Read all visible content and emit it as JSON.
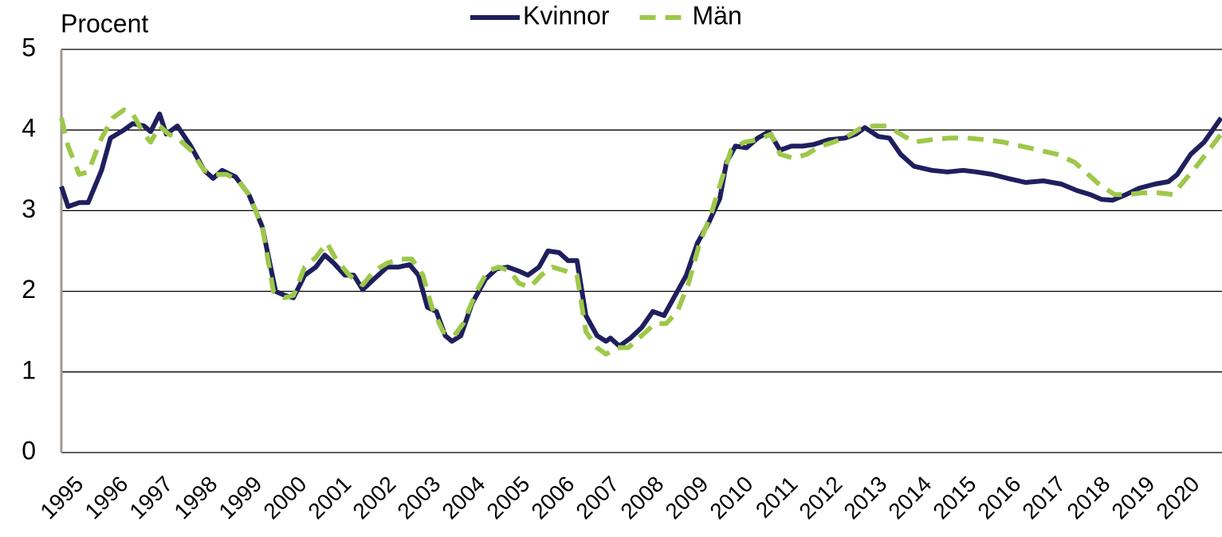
{
  "chart_data": {
    "type": "line",
    "ylabel": "Procent",
    "xlim": [
      1995,
      2021
    ],
    "xticks": [
      1995,
      1996,
      1997,
      1998,
      1999,
      2000,
      2001,
      2002,
      2003,
      2004,
      2005,
      2006,
      2007,
      2008,
      2009,
      2010,
      2011,
      2012,
      2013,
      2014,
      2015,
      2016,
      2017,
      2018,
      2019,
      2020
    ],
    "ylim": [
      0,
      5
    ],
    "yticks": [
      0,
      1,
      2,
      3,
      4,
      5
    ],
    "grid": true,
    "legend": "top",
    "series": [
      {
        "name": "Kvinnor",
        "color": "#1f1f5e",
        "dash": false,
        "x": [
          1995.0,
          1995.15,
          1995.4,
          1995.6,
          1995.9,
          1996.1,
          1996.4,
          1996.6,
          1996.85,
          1997.0,
          1997.2,
          1997.35,
          1997.6,
          1997.9,
          1998.2,
          1998.4,
          1998.6,
          1998.9,
          1999.2,
          1999.5,
          1999.8,
          2000.0,
          2000.2,
          2000.45,
          2000.7,
          2000.9,
          2001.1,
          2001.35,
          2001.55,
          2001.75,
          2002.0,
          2002.3,
          2002.55,
          2002.8,
          2003.0,
          2003.2,
          2003.4,
          2003.6,
          2003.75,
          2003.95,
          2004.2,
          2004.5,
          2004.75,
          2005.0,
          2005.25,
          2005.45,
          2005.7,
          2005.9,
          2006.15,
          2006.35,
          2006.55,
          2006.75,
          2007.0,
          2007.2,
          2007.3,
          2007.5,
          2007.75,
          2008.0,
          2008.25,
          2008.5,
          2008.75,
          2009.0,
          2009.25,
          2009.5,
          2009.75,
          2009.9,
          2010.1,
          2010.35,
          2010.6,
          2010.85,
          2011.1,
          2011.35,
          2011.6,
          2011.85,
          2012.2,
          2012.55,
          2012.8,
          2013.0,
          2013.3,
          2013.55,
          2013.8,
          2014.1,
          2014.5,
          2014.85,
          2015.2,
          2015.5,
          2015.85,
          2016.2,
          2016.6,
          2017.0,
          2017.4,
          2017.75,
          2018.05,
          2018.3,
          2018.55,
          2018.85,
          2019.15,
          2019.5,
          2019.8,
          2020.0,
          2020.3,
          2020.6,
          2020.98
        ],
        "values": [
          3.3,
          3.05,
          3.1,
          3.1,
          3.5,
          3.9,
          4.0,
          4.08,
          4.05,
          3.98,
          4.2,
          3.95,
          4.05,
          3.8,
          3.5,
          3.4,
          3.5,
          3.42,
          3.2,
          2.8,
          2.0,
          1.95,
          1.92,
          2.2,
          2.3,
          2.45,
          2.35,
          2.2,
          2.2,
          2.02,
          2.15,
          2.3,
          2.3,
          2.33,
          2.2,
          1.8,
          1.75,
          1.45,
          1.38,
          1.45,
          1.85,
          2.15,
          2.28,
          2.3,
          2.25,
          2.2,
          2.3,
          2.5,
          2.48,
          2.38,
          2.38,
          1.7,
          1.45,
          1.38,
          1.42,
          1.32,
          1.42,
          1.55,
          1.75,
          1.7,
          1.95,
          2.2,
          2.6,
          2.85,
          3.15,
          3.6,
          3.8,
          3.78,
          3.9,
          3.98,
          3.75,
          3.8,
          3.8,
          3.82,
          3.88,
          3.9,
          3.95,
          4.03,
          3.92,
          3.9,
          3.7,
          3.55,
          3.5,
          3.48,
          3.5,
          3.48,
          3.45,
          3.4,
          3.35,
          3.37,
          3.33,
          3.25,
          3.2,
          3.14,
          3.13,
          3.2,
          3.28,
          3.33,
          3.36,
          3.45,
          3.7,
          3.85,
          4.15
        ]
      },
      {
        "name": "Män",
        "color": "#9dc84a",
        "dash": true,
        "x": [
          1995.0,
          1995.15,
          1995.4,
          1995.6,
          1995.9,
          1996.15,
          1996.4,
          1996.6,
          1996.85,
          1997.0,
          1997.2,
          1997.4,
          1997.6,
          1997.9,
          1998.2,
          1998.45,
          1998.7,
          1998.95,
          1999.2,
          1999.5,
          1999.75,
          2000.0,
          2000.2,
          2000.45,
          2000.7,
          2000.95,
          2001.15,
          2001.45,
          2001.75,
          2002.0,
          2002.3,
          2002.6,
          2002.85,
          2003.1,
          2003.3,
          2003.55,
          2003.8,
          2004.0,
          2004.3,
          2004.55,
          2004.8,
          2005.05,
          2005.25,
          2005.5,
          2005.75,
          2006.0,
          2006.3,
          2006.55,
          2006.75,
          2007.0,
          2007.2,
          2007.45,
          2007.7,
          2008.0,
          2008.3,
          2008.55,
          2008.8,
          2009.05,
          2009.3,
          2009.55,
          2009.8,
          2010.0,
          2010.3,
          2010.6,
          2010.9,
          2011.1,
          2011.4,
          2011.7,
          2012.0,
          2012.3,
          2012.6,
          2012.9,
          2013.2,
          2013.5,
          2013.8,
          2014.1,
          2014.5,
          2014.9,
          2015.3,
          2015.7,
          2016.1,
          2016.5,
          2016.9,
          2017.3,
          2017.7,
          2018.0,
          2018.3,
          2018.6,
          2018.9,
          2019.2,
          2019.6,
          2019.9,
          2020.2,
          2020.5,
          2020.98
        ],
        "values": [
          4.15,
          3.8,
          3.45,
          3.48,
          3.9,
          4.15,
          4.25,
          4.2,
          3.95,
          3.85,
          4.05,
          3.95,
          3.9,
          3.75,
          3.5,
          3.45,
          3.45,
          3.38,
          3.2,
          2.8,
          2.0,
          1.92,
          1.95,
          2.3,
          2.42,
          2.6,
          2.4,
          2.2,
          2.08,
          2.25,
          2.35,
          2.4,
          2.4,
          2.2,
          1.8,
          1.5,
          1.45,
          1.6,
          2.0,
          2.25,
          2.3,
          2.25,
          2.1,
          2.05,
          2.2,
          2.3,
          2.25,
          2.2,
          1.5,
          1.3,
          1.22,
          1.3,
          1.3,
          1.45,
          1.6,
          1.6,
          1.75,
          2.1,
          2.6,
          2.95,
          3.4,
          3.75,
          3.85,
          3.88,
          3.95,
          3.7,
          3.65,
          3.7,
          3.8,
          3.85,
          3.92,
          4.02,
          4.05,
          4.05,
          3.95,
          3.85,
          3.88,
          3.9,
          3.9,
          3.88,
          3.85,
          3.8,
          3.75,
          3.7,
          3.6,
          3.45,
          3.3,
          3.2,
          3.2,
          3.22,
          3.22,
          3.2,
          3.4,
          3.6,
          3.95
        ]
      }
    ]
  }
}
